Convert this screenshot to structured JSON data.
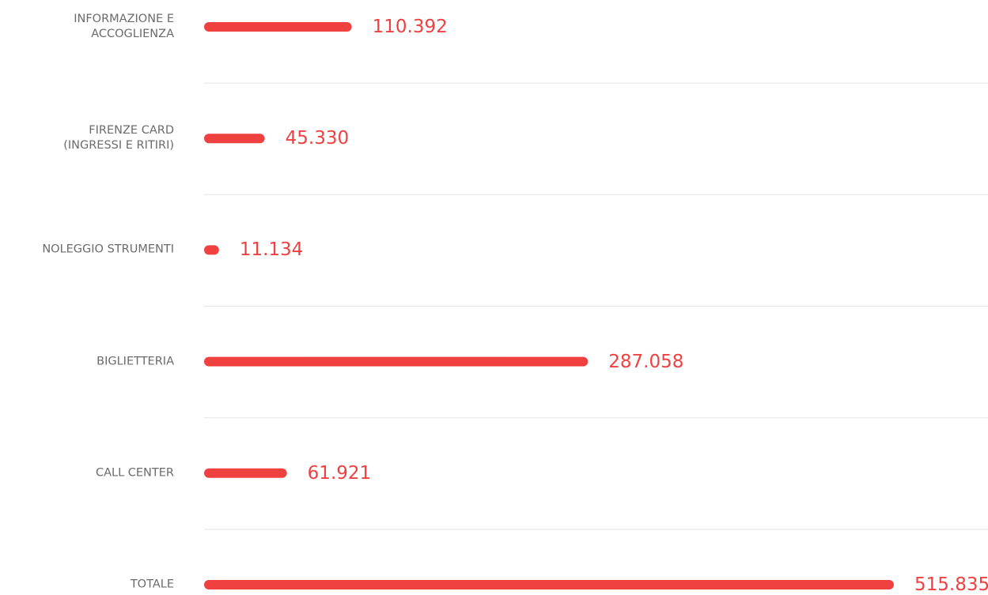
{
  "chart_data": {
    "type": "bar",
    "orientation": "horizontal",
    "categories": [
      "INFORMAZIONE E\nACCOGLIENZA",
      "FIRENZE CARD\n(INGRESSI E RITIRI)",
      "NOLEGGIO STRUMENTI",
      "BIGLIETTERIA",
      "CALL CENTER",
      "TOTALE"
    ],
    "values": [
      110392,
      45330,
      11134,
      287058,
      61921,
      515835
    ],
    "value_labels": [
      "110.392",
      "45.330",
      "11.134",
      "287.058",
      "61.921",
      "515.835"
    ],
    "color": "#ef4140",
    "xlim": [
      0,
      515835
    ]
  }
}
